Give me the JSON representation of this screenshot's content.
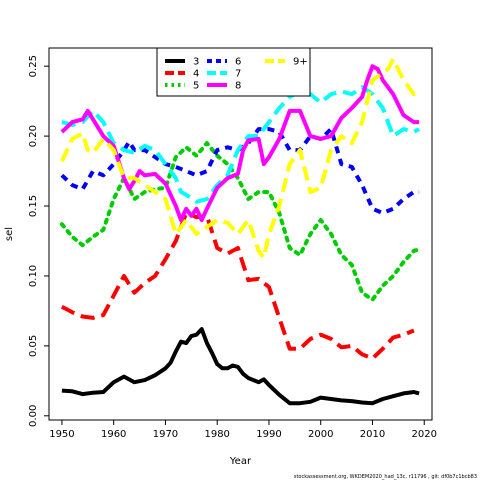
{
  "chart_data": {
    "type": "line",
    "xlabel": "Year",
    "ylabel": "sel",
    "xlim": [
      1947.5,
      2021.5
    ],
    "ylim": [
      -0.003,
      0.263
    ],
    "xticks": [
      1950,
      1960,
      1970,
      1980,
      1990,
      2000,
      2010,
      2020
    ],
    "yticks": [
      0.0,
      0.05,
      0.1,
      0.15,
      0.2,
      0.25
    ],
    "ytick_labels": [
      "0.00",
      "0.05",
      "0.10",
      "0.15",
      "0.20",
      "0.25"
    ],
    "legend_position": "top-center",
    "footnote": "stockassessment.org, WKDEM2020_had_13c, r11796 , git: df0b7c1bcb83",
    "series": [
      {
        "name": "3",
        "color": "#000000",
        "dash": "solid",
        "points": [
          [
            1950,
            0.018
          ],
          [
            1952,
            0.0175
          ],
          [
            1954,
            0.0155
          ],
          [
            1956,
            0.0165
          ],
          [
            1958,
            0.017
          ],
          [
            1960,
            0.024
          ],
          [
            1962,
            0.028
          ],
          [
            1964,
            0.024
          ],
          [
            1966,
            0.0255
          ],
          [
            1968,
            0.029
          ],
          [
            1970,
            0.034
          ],
          [
            1971,
            0.038
          ],
          [
            1972,
            0.046
          ],
          [
            1973,
            0.053
          ],
          [
            1974,
            0.052
          ],
          [
            1975,
            0.057
          ],
          [
            1976,
            0.058
          ],
          [
            1977,
            0.062
          ],
          [
            1978,
            0.052
          ],
          [
            1979,
            0.045
          ],
          [
            1980,
            0.037
          ],
          [
            1981,
            0.034
          ],
          [
            1982,
            0.034
          ],
          [
            1983,
            0.036
          ],
          [
            1984,
            0.035
          ],
          [
            1985,
            0.03
          ],
          [
            1986,
            0.027
          ],
          [
            1988,
            0.024
          ],
          [
            1989,
            0.026
          ],
          [
            1990,
            0.022
          ],
          [
            1992,
            0.015
          ],
          [
            1994,
            0.009
          ],
          [
            1996,
            0.009
          ],
          [
            1998,
            0.01
          ],
          [
            2000,
            0.013
          ],
          [
            2002,
            0.012
          ],
          [
            2004,
            0.011
          ],
          [
            2006,
            0.0105
          ],
          [
            2008,
            0.0095
          ],
          [
            2010,
            0.009
          ],
          [
            2012,
            0.012
          ],
          [
            2014,
            0.014
          ],
          [
            2016,
            0.016
          ],
          [
            2018,
            0.017
          ],
          [
            2019,
            0.016
          ]
        ]
      },
      {
        "name": "4",
        "color": "#ff0000",
        "dash": "long-dash",
        "points": [
          [
            1950,
            0.078
          ],
          [
            1952,
            0.074
          ],
          [
            1954,
            0.071
          ],
          [
            1956,
            0.07
          ],
          [
            1958,
            0.072
          ],
          [
            1960,
            0.086
          ],
          [
            1962,
            0.1
          ],
          [
            1964,
            0.088
          ],
          [
            1966,
            0.095
          ],
          [
            1968,
            0.1
          ],
          [
            1970,
            0.112
          ],
          [
            1972,
            0.125
          ],
          [
            1974,
            0.145
          ],
          [
            1976,
            0.142
          ],
          [
            1978,
            0.143
          ],
          [
            1980,
            0.12
          ],
          [
            1982,
            0.116
          ],
          [
            1984,
            0.12
          ],
          [
            1986,
            0.097
          ],
          [
            1988,
            0.098
          ],
          [
            1990,
            0.092
          ],
          [
            1992,
            0.07
          ],
          [
            1994,
            0.048
          ],
          [
            1996,
            0.048
          ],
          [
            1998,
            0.055
          ],
          [
            2000,
            0.058
          ],
          [
            2002,
            0.055
          ],
          [
            2004,
            0.049
          ],
          [
            2006,
            0.05
          ],
          [
            2008,
            0.044
          ],
          [
            2010,
            0.041
          ],
          [
            2012,
            0.048
          ],
          [
            2014,
            0.056
          ],
          [
            2016,
            0.058
          ],
          [
            2018,
            0.061
          ]
        ]
      },
      {
        "name": "5",
        "color": "#00cd00",
        "dash": "dotted",
        "points": [
          [
            1950,
            0.137
          ],
          [
            1952,
            0.128
          ],
          [
            1954,
            0.122
          ],
          [
            1956,
            0.128
          ],
          [
            1958,
            0.133
          ],
          [
            1960,
            0.155
          ],
          [
            1962,
            0.17
          ],
          [
            1964,
            0.155
          ],
          [
            1966,
            0.16
          ],
          [
            1968,
            0.162
          ],
          [
            1970,
            0.163
          ],
          [
            1972,
            0.185
          ],
          [
            1974,
            0.192
          ],
          [
            1976,
            0.186
          ],
          [
            1978,
            0.195
          ],
          [
            1980,
            0.186
          ],
          [
            1982,
            0.18
          ],
          [
            1984,
            0.17
          ],
          [
            1986,
            0.155
          ],
          [
            1988,
            0.16
          ],
          [
            1990,
            0.16
          ],
          [
            1992,
            0.145
          ],
          [
            1994,
            0.12
          ],
          [
            1996,
            0.115
          ],
          [
            1998,
            0.13
          ],
          [
            2000,
            0.14
          ],
          [
            2002,
            0.13
          ],
          [
            2004,
            0.115
          ],
          [
            2006,
            0.108
          ],
          [
            2008,
            0.088
          ],
          [
            2010,
            0.083
          ],
          [
            2012,
            0.093
          ],
          [
            2014,
            0.1
          ],
          [
            2016,
            0.11
          ],
          [
            2018,
            0.118
          ],
          [
            2019,
            0.119
          ]
        ]
      },
      {
        "name": "6",
        "color": "#0000ff",
        "dash": "short-dash",
        "points": [
          [
            1950,
            0.172
          ],
          [
            1952,
            0.165
          ],
          [
            1954,
            0.162
          ],
          [
            1956,
            0.175
          ],
          [
            1958,
            0.172
          ],
          [
            1960,
            0.18
          ],
          [
            1962,
            0.19
          ],
          [
            1963,
            0.196
          ],
          [
            1964,
            0.19
          ],
          [
            1966,
            0.19
          ],
          [
            1968,
            0.185
          ],
          [
            1970,
            0.18
          ],
          [
            1972,
            0.178
          ],
          [
            1974,
            0.175
          ],
          [
            1976,
            0.172
          ],
          [
            1978,
            0.175
          ],
          [
            1980,
            0.19
          ],
          [
            1982,
            0.192
          ],
          [
            1984,
            0.19
          ],
          [
            1986,
            0.195
          ],
          [
            1988,
            0.205
          ],
          [
            1990,
            0.205
          ],
          [
            1992,
            0.203
          ],
          [
            1994,
            0.19
          ],
          [
            1996,
            0.19
          ],
          [
            1998,
            0.2
          ],
          [
            2000,
            0.198
          ],
          [
            2002,
            0.205
          ],
          [
            2004,
            0.18
          ],
          [
            2006,
            0.178
          ],
          [
            2008,
            0.165
          ],
          [
            2010,
            0.148
          ],
          [
            2012,
            0.145
          ],
          [
            2014,
            0.148
          ],
          [
            2016,
            0.155
          ],
          [
            2018,
            0.16
          ],
          [
            2019,
            0.16
          ]
        ]
      },
      {
        "name": "7",
        "color": "#00ffff",
        "dash": "long-dash",
        "points": [
          [
            1950,
            0.21
          ],
          [
            1952,
            0.208
          ],
          [
            1954,
            0.21
          ],
          [
            1956,
            0.218
          ],
          [
            1958,
            0.21
          ],
          [
            1960,
            0.195
          ],
          [
            1962,
            0.19
          ],
          [
            1964,
            0.188
          ],
          [
            1966,
            0.193
          ],
          [
            1968,
            0.19
          ],
          [
            1970,
            0.18
          ],
          [
            1972,
            0.17
          ],
          [
            1973,
            0.16
          ],
          [
            1974,
            0.158
          ],
          [
            1976,
            0.153
          ],
          [
            1978,
            0.155
          ],
          [
            1980,
            0.165
          ],
          [
            1982,
            0.172
          ],
          [
            1984,
            0.19
          ],
          [
            1986,
            0.2
          ],
          [
            1988,
            0.2
          ],
          [
            1990,
            0.21
          ],
          [
            1992,
            0.22
          ],
          [
            1994,
            0.228
          ],
          [
            1996,
            0.232
          ],
          [
            1998,
            0.23
          ],
          [
            2000,
            0.224
          ],
          [
            2002,
            0.23
          ],
          [
            2004,
            0.232
          ],
          [
            2006,
            0.23
          ],
          [
            2008,
            0.235
          ],
          [
            2010,
            0.23
          ],
          [
            2012,
            0.22
          ],
          [
            2014,
            0.2
          ],
          [
            2016,
            0.205
          ],
          [
            2018,
            0.203
          ],
          [
            2019,
            0.205
          ]
        ]
      },
      {
        "name": "8",
        "color": "#ff00ff",
        "dash": "solid",
        "points": [
          [
            1950,
            0.203
          ],
          [
            1952,
            0.21
          ],
          [
            1954,
            0.212
          ],
          [
            1955,
            0.218
          ],
          [
            1956,
            0.212
          ],
          [
            1958,
            0.2
          ],
          [
            1960,
            0.193
          ],
          [
            1962,
            0.17
          ],
          [
            1963,
            0.162
          ],
          [
            1964,
            0.168
          ],
          [
            1965,
            0.175
          ],
          [
            1966,
            0.172
          ],
          [
            1968,
            0.173
          ],
          [
            1970,
            0.166
          ],
          [
            1972,
            0.15
          ],
          [
            1973,
            0.14
          ],
          [
            1974,
            0.148
          ],
          [
            1975,
            0.143
          ],
          [
            1976,
            0.148
          ],
          [
            1977,
            0.14
          ],
          [
            1978,
            0.148
          ],
          [
            1980,
            0.163
          ],
          [
            1982,
            0.17
          ],
          [
            1984,
            0.173
          ],
          [
            1985,
            0.19
          ],
          [
            1986,
            0.197
          ],
          [
            1988,
            0.198
          ],
          [
            1989,
            0.18
          ],
          [
            1990,
            0.185
          ],
          [
            1992,
            0.198
          ],
          [
            1994,
            0.218
          ],
          [
            1996,
            0.218
          ],
          [
            1998,
            0.2
          ],
          [
            2000,
            0.198
          ],
          [
            2002,
            0.2
          ],
          [
            2004,
            0.213
          ],
          [
            2006,
            0.22
          ],
          [
            2008,
            0.228
          ],
          [
            2009,
            0.24
          ],
          [
            2010,
            0.25
          ],
          [
            2011,
            0.248
          ],
          [
            2012,
            0.24
          ],
          [
            2014,
            0.23
          ],
          [
            2016,
            0.215
          ],
          [
            2018,
            0.21
          ],
          [
            2019,
            0.21
          ]
        ]
      },
      {
        "name": "9+",
        "color": "#ffff00",
        "dash": "long-dash",
        "points": [
          [
            1950,
            0.182
          ],
          [
            1952,
            0.198
          ],
          [
            1954,
            0.202
          ],
          [
            1955,
            0.19
          ],
          [
            1956,
            0.188
          ],
          [
            1958,
            0.198
          ],
          [
            1960,
            0.19
          ],
          [
            1962,
            0.17
          ],
          [
            1964,
            0.17
          ],
          [
            1966,
            0.165
          ],
          [
            1968,
            0.16
          ],
          [
            1970,
            0.155
          ],
          [
            1972,
            0.13
          ],
          [
            1974,
            0.14
          ],
          [
            1976,
            0.13
          ],
          [
            1978,
            0.135
          ],
          [
            1980,
            0.14
          ],
          [
            1982,
            0.138
          ],
          [
            1984,
            0.13
          ],
          [
            1986,
            0.14
          ],
          [
            1988,
            0.118
          ],
          [
            1989,
            0.113
          ],
          [
            1990,
            0.13
          ],
          [
            1992,
            0.15
          ],
          [
            1994,
            0.18
          ],
          [
            1996,
            0.19
          ],
          [
            1998,
            0.16
          ],
          [
            2000,
            0.163
          ],
          [
            2002,
            0.19
          ],
          [
            2004,
            0.2
          ],
          [
            2006,
            0.195
          ],
          [
            2008,
            0.21
          ],
          [
            2010,
            0.24
          ],
          [
            2012,
            0.245
          ],
          [
            2013,
            0.248
          ],
          [
            2014,
            0.255
          ],
          [
            2016,
            0.24
          ],
          [
            2018,
            0.23
          ],
          [
            2019,
            0.232
          ]
        ]
      }
    ]
  }
}
